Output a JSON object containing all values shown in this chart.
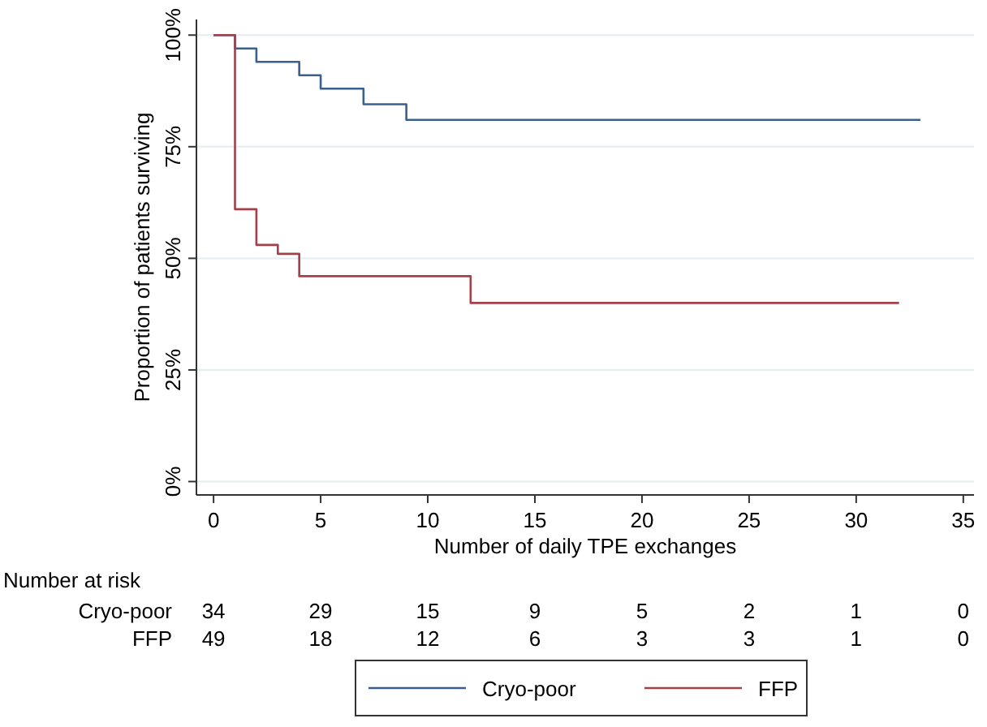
{
  "chart_data": {
    "type": "step",
    "xlabel": "Number of daily TPE exchanges",
    "ylabel": "Proportion of patients surviving",
    "xlim": [
      -0.8,
      35.5
    ],
    "xticks": [
      0,
      5,
      10,
      15,
      20,
      25,
      30,
      35
    ],
    "ylim": [
      -3,
      103.5
    ],
    "yticks": [
      {
        "value": 0,
        "label": "0%"
      },
      {
        "value": 25,
        "label": "25%"
      },
      {
        "value": 50,
        "label": "50%"
      },
      {
        "value": 75,
        "label": "75%"
      },
      {
        "value": 100,
        "label": "100%"
      }
    ],
    "grid": "y",
    "legend": "bottom",
    "series": [
      {
        "name": "Cryo-poor",
        "color": "#3b5f8e",
        "x": [
          0,
          1,
          2,
          4,
          5,
          7,
          9,
          33
        ],
        "values": [
          100,
          97,
          94,
          91,
          88,
          84.5,
          81,
          81
        ]
      },
      {
        "name": "FFP",
        "color": "#a3414b",
        "x": [
          0,
          1,
          2,
          3,
          4,
          12,
          32
        ],
        "values": [
          100,
          61,
          53,
          51,
          46,
          40,
          40
        ]
      }
    ],
    "annotations": [
      "Number at risk",
      "Cryo-poor",
      "34",
      "29",
      "15",
      "9",
      "5",
      "2",
      "1",
      "0",
      "FFP",
      "49",
      "18",
      "12",
      "6",
      "3",
      "3",
      "1",
      "0"
    ]
  }
}
